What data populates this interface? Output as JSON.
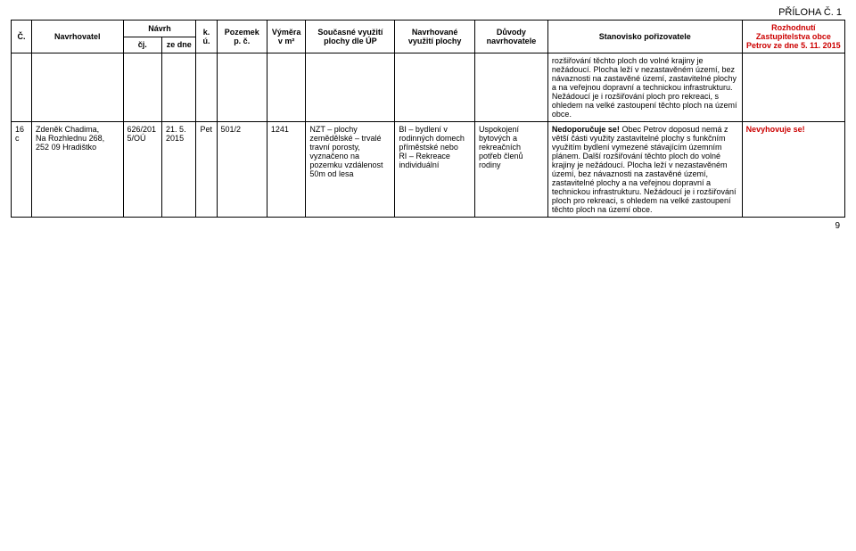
{
  "appendix_label": "PŘÍLOHA Č. 1",
  "page_number": "9",
  "header": {
    "c1": "Č.",
    "c2": "Navrhovatel",
    "c_navrh": "Návrh",
    "c3": "čj.",
    "c4": "ze dne",
    "c5": "k. ú.",
    "c6": "Pozemek p. č.",
    "c7": "Výměra v m²",
    "c8": "Současné využití plochy dle ÚP",
    "c9": "Navrhované využití plochy",
    "c10": "Důvody navrhovatele",
    "c11": "Stanovisko pořizovatele",
    "c12": "Rozhodnutí Zastupitelstva obce Petrov ze dne 5. 11. 2015"
  },
  "row0": {
    "c11": "rozšiřování těchto ploch do volné krajiny je nežádoucí. Plocha leží v nezastavěném území, bez návaznosti na zastavěné území, zastavitelné plochy a na veřejnou dopravní a technickou infrastrukturu. Nežádoucí je i rozšiřování ploch pro rekreaci, s ohledem na velké zastoupení těchto ploch na území obce."
  },
  "row1": {
    "c1": "16 c",
    "c2": "Zdeněk Chadima,\nNa Rozhlednu 268,\n252 09 Hradištko",
    "c3": "626/2015/OÚ",
    "c4": "21. 5. 2015",
    "c5": "Pet",
    "c6": "501/2",
    "c7": "1241",
    "c8": "NZT – plochy zemědělské – trvalé travní porosty, vyznačeno na pozemku vzdálenost 50m od lesa",
    "c9": "BI – bydlení v rodinných domech příměstské nebo\nRI – Rekreace individuální",
    "c10": "Uspokojení bytových a rekreačních potřeb členů rodiny",
    "c11_bold": "Nedoporučuje se!",
    "c11_rest": " Obec Petrov doposud nemá z větší části využity zastavitelné plochy s funkčním využitím bydlení vymezené stávajícím územním plánem. Další rozšiřování těchto ploch do volné krajiny je nežádoucí. Plocha leží v nezastavěném území, bez návaznosti na zastavěné území, zastavitelné plochy a na veřejnou dopravní a technickou infrastrukturu. Nežádoucí je i rozšiřování ploch pro rekreaci, s ohledem na velké zastoupení těchto ploch na území obce.",
    "c12": "Nevyhovuje se!"
  }
}
